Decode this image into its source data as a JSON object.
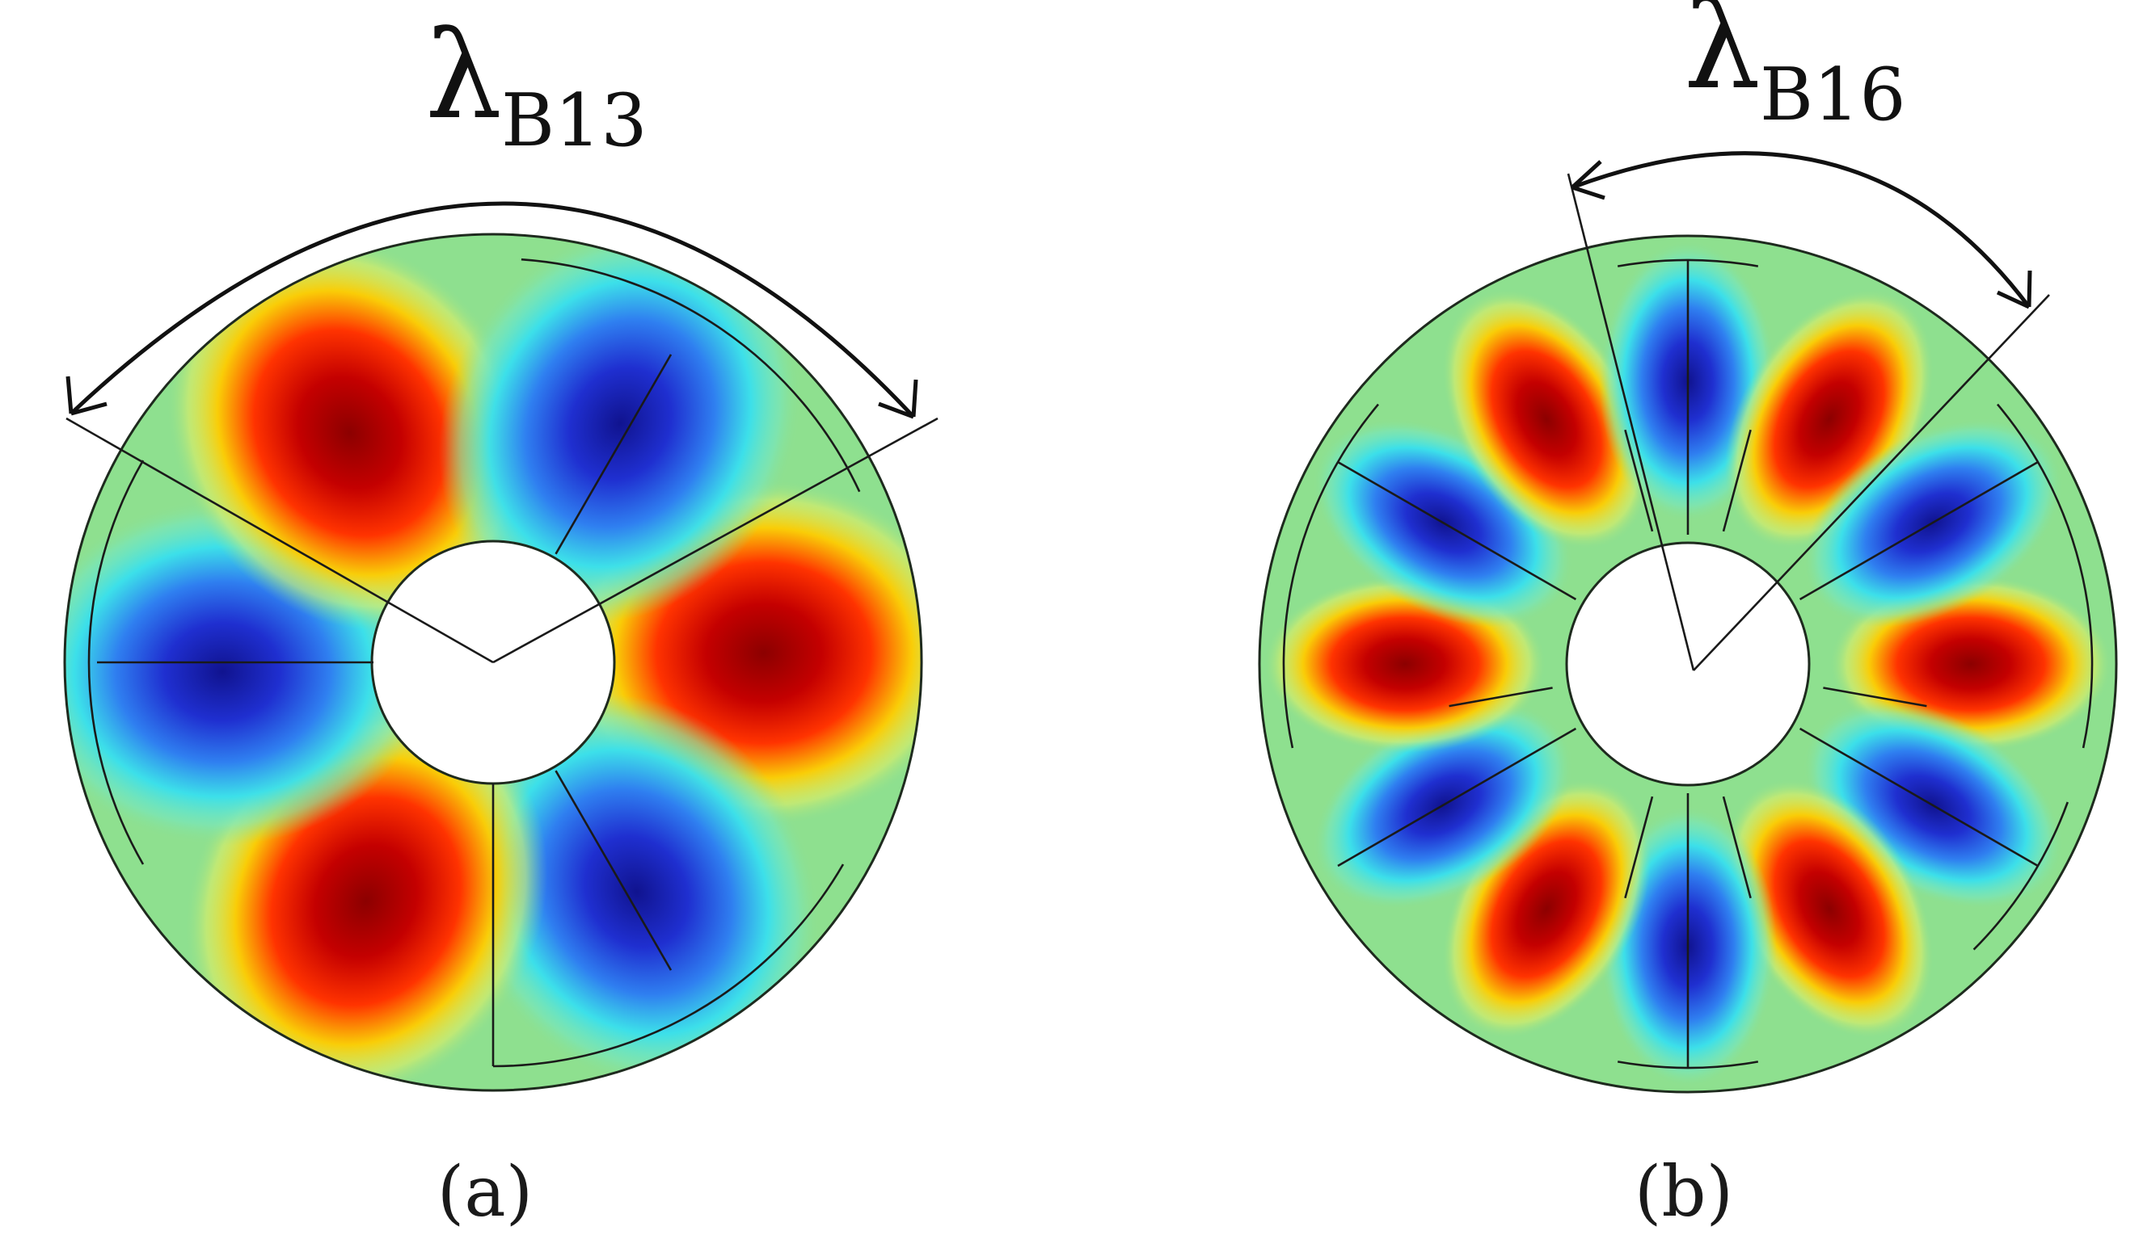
{
  "panels": [
    {
      "id": "a",
      "label": "λ",
      "subscript": "B13",
      "caption": "(a)",
      "lobe_count": 6
    },
    {
      "id": "b",
      "label": "λ",
      "subscript": "B16",
      "caption": "(b)",
      "lobe_count": 12
    }
  ],
  "colors": {
    "background_disk": "#8ee08f",
    "positive_peak": "#a80000",
    "positive_mid": "#ff2a00",
    "positive_edge": "#ffe600",
    "negative_peak": "#1a1fb0",
    "negative_mid": "#2f6fe8",
    "negative_edge": "#3fe8e8"
  }
}
